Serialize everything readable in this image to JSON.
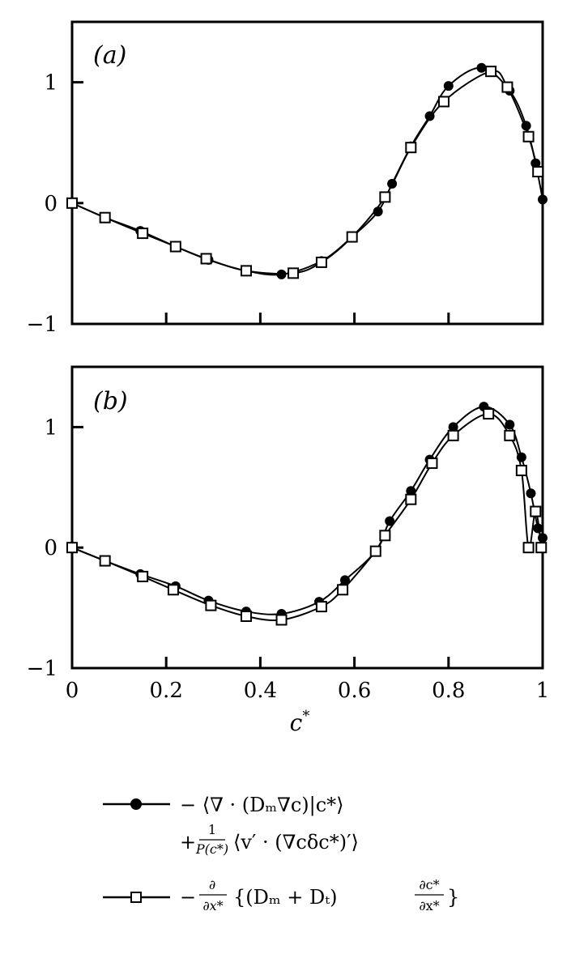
{
  "chart_data": [
    {
      "type": "line",
      "panel_label": "(a)",
      "xlim": [
        0,
        1
      ],
      "ylim": [
        -1,
        1.5
      ],
      "x_ticks": [
        "0",
        "0.2",
        "0.4",
        "0.6",
        "0.8",
        "1"
      ],
      "x_tick_labels_shown": false,
      "y_ticks": [
        "-1",
        "0",
        "1"
      ],
      "grid": false,
      "series": [
        {
          "marker": "filled-circle",
          "x": [
            0.0,
            0.07,
            0.145,
            0.22,
            0.29,
            0.37,
            0.445,
            0.53,
            0.595,
            0.65,
            0.68,
            0.72,
            0.76,
            0.8,
            0.87,
            0.93,
            0.965,
            0.985,
            1.0
          ],
          "y": [
            0.0,
            -0.12,
            -0.23,
            -0.36,
            -0.47,
            -0.56,
            -0.59,
            -0.48,
            -0.28,
            -0.07,
            0.16,
            0.47,
            0.72,
            0.97,
            1.12,
            0.93,
            0.64,
            0.33,
            0.03
          ]
        },
        {
          "marker": "open-square",
          "x": [
            0.0,
            0.07,
            0.15,
            0.22,
            0.285,
            0.37,
            0.47,
            0.53,
            0.595,
            0.665,
            0.72,
            0.79,
            0.89,
            0.925,
            0.97,
            0.99
          ],
          "y": [
            0.0,
            -0.12,
            -0.25,
            -0.36,
            -0.46,
            -0.56,
            -0.58,
            -0.49,
            -0.28,
            0.05,
            0.46,
            0.84,
            1.09,
            0.96,
            0.55,
            0.26
          ]
        }
      ]
    },
    {
      "type": "line",
      "panel_label": "(b)",
      "xlim": [
        0,
        1
      ],
      "ylim": [
        -1,
        1.5
      ],
      "x_ticks": [
        "0",
        "0.2",
        "0.4",
        "0.6",
        "0.8",
        "1"
      ],
      "x_tick_labels_shown": true,
      "y_ticks": [
        "-1",
        "0",
        "1"
      ],
      "xlabel": "c*",
      "grid": false,
      "series": [
        {
          "marker": "filled-circle",
          "x": [
            0.0,
            0.07,
            0.145,
            0.22,
            0.29,
            0.37,
            0.445,
            0.525,
            0.58,
            0.645,
            0.675,
            0.72,
            0.76,
            0.81,
            0.875,
            0.93,
            0.955,
            0.975,
            0.99,
            1.0
          ],
          "y": [
            0.0,
            -0.11,
            -0.22,
            -0.32,
            -0.44,
            -0.53,
            -0.55,
            -0.45,
            -0.27,
            -0.03,
            0.22,
            0.47,
            0.73,
            1.0,
            1.17,
            1.02,
            0.75,
            0.45,
            0.16,
            0.08
          ]
        },
        {
          "marker": "open-square",
          "x": [
            0.0,
            0.07,
            0.15,
            0.215,
            0.295,
            0.37,
            0.445,
            0.53,
            0.575,
            0.645,
            0.665,
            0.72,
            0.765,
            0.81,
            0.885,
            0.93,
            0.955,
            0.97,
            0.985,
            0.997
          ],
          "y": [
            0.0,
            -0.11,
            -0.24,
            -0.35,
            -0.48,
            -0.57,
            -0.6,
            -0.49,
            -0.35,
            -0.03,
            0.1,
            0.4,
            0.7,
            0.93,
            1.11,
            0.93,
            0.64,
            0.0,
            0.3,
            0.0
          ]
        }
      ]
    }
  ],
  "legend": {
    "entries": [
      {
        "marker": "filled-circle",
        "line1": "− ⟨∇ · (Dₘ∇c)|c*⟩",
        "line2_prefix": "+",
        "line2_fraction_num": "1",
        "line2_fraction_den": "P(c*)",
        "line2_rest": "⟨v′ · (∇cδc*)′⟩"
      },
      {
        "marker": "open-square",
        "prefix": "−",
        "fraction_num": "∂",
        "fraction_den": "∂x*",
        "rest_open": "{(Dₘ + Dₜ)",
        "rest_frac_num": "∂c*",
        "rest_frac_den": "∂x*",
        "rest_close": "}"
      }
    ]
  }
}
